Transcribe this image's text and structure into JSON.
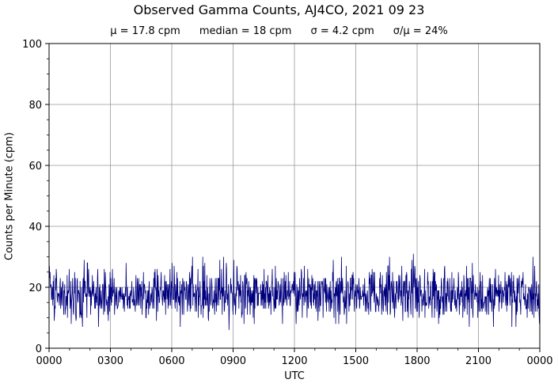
{
  "chart_data": {
    "type": "line",
    "title": "Observed Gamma Counts, AJ4CO, 2021 09 23",
    "stats": {
      "mean": "μ = 17.8 cpm",
      "median": "median = 18 cpm",
      "sigma": "σ = 4.2 cpm",
      "cv": "σ/μ = 24%"
    },
    "xlabel": "UTC",
    "ylabel": "Counts per Minute (cpm)",
    "ylim": [
      0,
      100
    ],
    "yticks": [
      0,
      20,
      40,
      60,
      80,
      100
    ],
    "xlim_hours": [
      0,
      24
    ],
    "xticks": [
      "0000",
      "0300",
      "0600",
      "0900",
      "1200",
      "1500",
      "1800",
      "2100",
      "0000"
    ],
    "grid": true,
    "series": [
      {
        "color": "#00007f",
        "sampling": "1 minute",
        "summary": {
          "mean": 17.8,
          "median": 18,
          "stdev": 4.2,
          "min": 6,
          "max": 31
        },
        "notable_points": [
          {
            "time": "0848",
            "value": 6
          },
          {
            "time": "1749",
            "value": 31
          },
          {
            "time": "0143",
            "value": 29
          },
          {
            "time": "0701",
            "value": 30
          },
          {
            "time": "1418",
            "value": 30
          },
          {
            "time": "0731",
            "value": 30
          },
          {
            "time": "2359",
            "value": 8
          }
        ]
      }
    ]
  }
}
